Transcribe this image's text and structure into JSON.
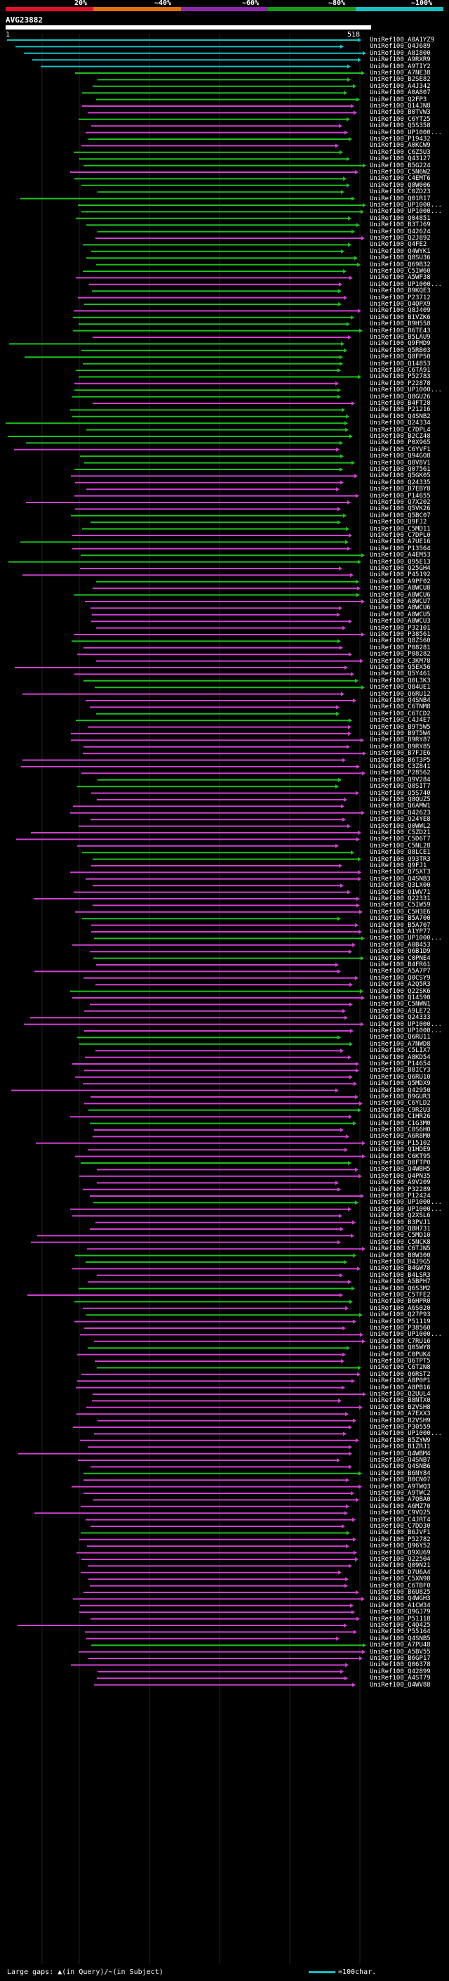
{
  "scale": {
    "labels": [
      "20%",
      "~40%",
      "~60%",
      "~80%",
      "~100%"
    ],
    "colors": [
      "#e0102a",
      "#e07010",
      "#8a2aa8",
      "#1a9a1a",
      "#19c0c0"
    ]
  },
  "query": {
    "id": "AVG23882",
    "start": "1",
    "end": "518"
  },
  "colors": {
    "cyan": "#19c0c0",
    "green": "#1ec01e",
    "magenta": "#d040d0",
    "grid": "#1a1a1a",
    "query_bar": "#ffffff"
  },
  "hits": [
    "UniRef100_A0A1YZ9",
    "UniRef100_Q4J689",
    "UniRef100_A8I800",
    "UniRef100_A9RXR9",
    "UniRef100_A9TIY2",
    "UniRef100_A7NE38",
    "UniRef100_B2SE82",
    "UniRef100_A4J342",
    "UniRef100_A0A807",
    "UniRef100_Q2FP3",
    "UniRef100_Q14JN8",
    "UniRef100_B0TVW3",
    "UniRef100_C6YT25",
    "UniRef100_Q5S358",
    "UniRef100_UP1000...",
    "UniRef100_P19432",
    "UniRef100_A0KCW9",
    "UniRef100_C6Z5U3",
    "UniRef100_Q43127",
    "UniRef100_B5G224",
    "UniRef100_C5N6W2",
    "UniRef100_C4EMT6",
    "UniRef100_Q8W006",
    "UniRef100_C0ZD23",
    "UniRef100_Q01R17",
    "UniRef100_UP1000...",
    "UniRef100_UP1000...",
    "UniRef100_Q04851",
    "UniRef100_B3TJ69",
    "UniRef100_Q42624",
    "UniRef100_Q2J892",
    "UniRef100_Q4FE2",
    "UniRef100_Q4WYK1",
    "UniRef100_Q8SU36",
    "UniRef100_Q69B32",
    "UniRef100_C5IW60",
    "UniRef100_A5WF38",
    "UniRef100_UP1000...",
    "UniRef100_B9KQE3",
    "UniRef100_P23712",
    "UniRef100_Q4QPX9",
    "UniRef100_Q8J409",
    "UniRef100_B1VZK6",
    "UniRef100_B9H558",
    "UniRef100_B6TE43",
    "UniRef100_B5LAU9",
    "UniRef100_Q9FMD9",
    "UniRef100_Q5RB03",
    "UniRef100_Q8FP50",
    "UniRef100_Q14853",
    "UniRef100_C6TA91",
    "UniRef100_P52783",
    "UniRef100_P22878",
    "UniRef100_UP1000...",
    "UniRef100_Q8GU26",
    "UniRef100_B4FT28",
    "UniRef100_P21216",
    "UniRef100_Q4SNB2",
    "UniRef100_Q24334",
    "UniRef100_C7DPL4",
    "UniRef100_B2CZ48",
    "UniRef100_P0X965",
    "UniRef100_C6YVF1",
    "UniRef100_Q94GO8",
    "UniRef100_Q8V8V1",
    "UniRef100_Q07561",
    "UniRef100_Q5GK05",
    "UniRef100_Q24335",
    "UniRef100_B7EBY8",
    "UniRef100_P14655",
    "UniRef100_Q7X202",
    "UniRef100_Q5VK26",
    "UniRef100_Q5BC07",
    "UniRef100_Q9FJ2",
    "UniRef100_C5MD11",
    "UniRef100_C7DPL0",
    "UniRef100_A7UE16",
    "UniRef100_P13564",
    "UniRef100_A4EM53",
    "UniRef100_Q95E13",
    "UniRef100_Q25GH4",
    "UniRef100_P45192",
    "UniRef100_A9PF02",
    "UniRef100_A8WCU8",
    "UniRef100_A8WCU6",
    "UniRef100_A8WCU7",
    "UniRef100_A8WCU6",
    "UniRef100_A8WCU5",
    "UniRef100_A8WCU3",
    "UniRef100_P32101",
    "UniRef100_P38561",
    "UniRef100_Q8Z560",
    "UniRef100_P08281",
    "UniRef100_P08282",
    "UniRef100_C3KM78",
    "UniRef100_Q5EX56",
    "UniRef100_Q5Y461",
    "UniRef100_Q0L3K3",
    "UniRef100_Q84UE1",
    "UniRef100_Q6RU12",
    "UniRef100_Q4SNB4",
    "UniRef100_C6TNM8",
    "UniRef100_C6TCD2",
    "UniRef100_C4J4E7",
    "UniRef100_B9T5W5",
    "UniRef100_B9T5W4",
    "UniRef100_B9RY87",
    "UniRef100_B9RY85",
    "UniRef100_B7FJE6",
    "UniRef100_B6T3P5",
    "UniRef100_C3Z841",
    "UniRef100_P28562",
    "UniRef100_Q9V284",
    "UniRef100_Q8SIT7",
    "UniRef100_Q5S740",
    "UniRef100_Q8QUZ5",
    "UniRef100_Q6AMW1",
    "UniRef100_Q42623",
    "UniRef100_Q24YE8",
    "UniRef100_Q0WWL2",
    "UniRef100_C5ZD21",
    "UniRef100_C5D6T7",
    "UniRef100_C5NL28",
    "UniRef100_Q8LCE1",
    "UniRef100_Q93TR3",
    "UniRef100_Q9FJ1",
    "UniRef100_Q7SXT3",
    "UniRef100_Q4SNB3",
    "UniRef100_Q3LX00",
    "UniRef100_Q1WV71",
    "UniRef100_Q22331",
    "UniRef100_C5IW59",
    "UniRef100_C5H3E6",
    "UniRef100_B5A700",
    "UniRef100_B5A707",
    "UniRef100_A1YP77",
    "UniRef100_UP1000...",
    "UniRef100_A0B453",
    "UniRef100_Q6B1D9",
    "UniRef100_C0PNE4",
    "UniRef100_B4FR61",
    "UniRef100_A5A7P7",
    "UniRef100_Q0CSY9",
    "UniRef100_A2Q5R3",
    "UniRef100_Q22SK6",
    "UniRef100_Q14590",
    "UniRef100_C5NWN1",
    "UniRef100_A9LE72",
    "UniRef100_Q24333",
    "UniRef100_UP1000...",
    "UniRef100_UP1000...",
    "UniRef100_Q6RU11",
    "UniRef100_A7NWD8",
    "UniRef100_C5LIX7",
    "UniRef100_A8KD54",
    "UniRef100_P14654",
    "UniRef100_B8ICY3",
    "UniRef100_Q6RU10",
    "UniRef100_Q5MDX9",
    "UniRef100_Q42950",
    "UniRef100_B9GUR3",
    "UniRef100_C6YLD2",
    "UniRef100_C9R2U3",
    "UniRef100_C1HR26",
    "UniRef100_C1G3M0",
    "UniRef100_C0S6H0",
    "UniRef100_A6R8M0",
    "UniRef100_P15102",
    "UniRef100_Q1HDE9",
    "UniRef100_C6KT95",
    "UniRef100_Q0FTP0",
    "UniRef100_Q4WBH5",
    "UniRef100_Q4PN35",
    "UniRef100_A9V209",
    "UniRef100_P32289",
    "UniRef100_P12424",
    "UniRef100_UP1000...",
    "UniRef100_UP1000...",
    "UniRef100_Q2XSL6",
    "UniRef100_B3PVJ1",
    "UniRef100_Q8H731",
    "UniRef100_C5MD10",
    "UniRef100_C5NCK8",
    "UniRef100_C6TJN5",
    "UniRef100_B8W300",
    "UniRef100_B4J9G5",
    "UniRef100_B4GW78",
    "UniRef100_B4LSR3",
    "UniRef100_A5BPH7",
    "UniRef100_Q6S3M2",
    "UniRef100_C5TFE2",
    "UniRef100_B6HPR0",
    "UniRef100_A6S020",
    "UniRef100_Q27P93",
    "UniRef100_P51119",
    "UniRef100_P38560",
    "UniRef100_UP1000...",
    "UniRef100_C7RU16",
    "UniRef100_Q05WY8",
    "UniRef100_C0PUK4",
    "UniRef100_Q6TPT5",
    "UniRef100_C6T2N8",
    "UniRef100_Q6RST2",
    "UniRef100_A8P0P1",
    "UniRef100_A8PB16",
    "UniRef100_Q2UUL4",
    "UniRef100_B8NTX0",
    "UniRef100_B2VSH8",
    "UniRef100_A7EXX3",
    "UniRef100_B2VSH9",
    "UniRef100_P30559",
    "UniRef100_UP1000...",
    "UniRef100_B5ZYW9",
    "UniRef100_B1ZRJ1",
    "UniRef100_Q4WBM4",
    "UniRef100_Q4SNB7",
    "UniRef100_Q4SNB6",
    "UniRef100_B6NY84",
    "UniRef100_B0CN07",
    "UniRef100_A9TWQ3",
    "UniRef100_A9TWC2",
    "UniRef100_A7QBA0",
    "UniRef100_A6MZ70",
    "UniRef100_C9VQ25",
    "UniRef100_C4JRT4",
    "UniRef100_C7DD30",
    "UniRef100_B6JVF1",
    "UniRef100_P52782",
    "UniRef100_Q96Y52",
    "UniRef100_Q9XU69",
    "UniRef100_Q22504",
    "UniRef100_Q09N21",
    "UniRef100_D7U6A4",
    "UniRef100_C5XN98",
    "UniRef100_C6TBF0",
    "UniRef100_B6U825",
    "UniRef100_Q4WGH3",
    "UniRef100_A1CW34",
    "UniRef100_Q9GJ79",
    "UniRef100_P51118",
    "UniRef100_C4Q425",
    "UniRef100_P55164",
    "UniRef100_Q4SNB5",
    "UniRef100_A7PU48",
    "UniRef100_A5BV55",
    "UniRef100_B6GP17",
    "UniRef100_Q06378",
    "UniRef100_Q42899",
    "UniRef100_A4ST79",
    "UniRef100_Q4WV88"
  ],
  "legend": {
    "text": "Large gaps: ▲(in Query)/~(in Subject)",
    "scale_text": "=100char."
  }
}
